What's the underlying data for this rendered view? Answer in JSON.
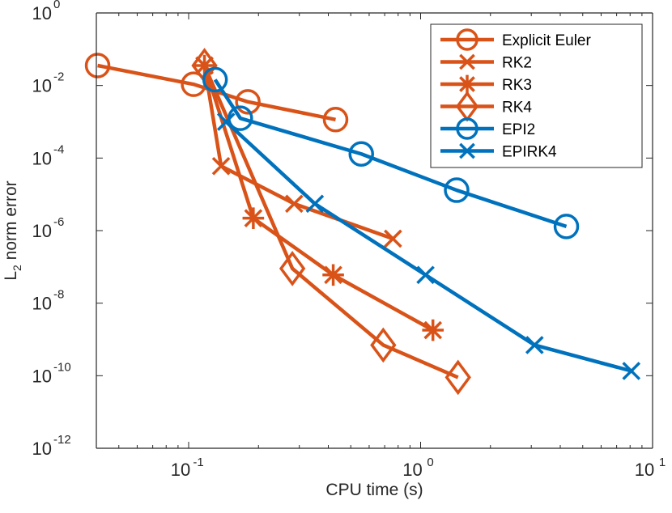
{
  "chart_data": {
    "type": "line",
    "xscale": "log",
    "yscale": "log",
    "xlim": [
      0.04,
      10
    ],
    "ylim": [
      1e-12,
      1
    ],
    "xlabel": "CPU time (s)",
    "ylabel": {
      "base": "L",
      "subscript": "2",
      "rest": " norm error"
    },
    "xticks": [
      {
        "value": 0.1,
        "base": "10",
        "exp": "-1"
      },
      {
        "value": 1,
        "base": "10",
        "exp": "0"
      },
      {
        "value": 10,
        "base": "10",
        "exp": "1"
      }
    ],
    "yticks": [
      {
        "value": 1e-12,
        "base": "10",
        "exp": "-12"
      },
      {
        "value": 1e-10,
        "base": "10",
        "exp": "-10"
      },
      {
        "value": 1e-08,
        "base": "10",
        "exp": "-8"
      },
      {
        "value": 1e-06,
        "base": "10",
        "exp": "-6"
      },
      {
        "value": 0.0001,
        "base": "10",
        "exp": "-4"
      },
      {
        "value": 0.01,
        "base": "10",
        "exp": "-2"
      },
      {
        "value": 1,
        "base": "10",
        "exp": "0"
      }
    ],
    "legend_position": "top-right",
    "series": [
      {
        "name": "Explicit Euler",
        "color": "#D95319",
        "marker": "circle",
        "x": [
          0.0405,
          0.105,
          0.18,
          0.43
        ],
        "y": [
          0.0355,
          0.0108,
          0.00355,
          0.00115
        ]
      },
      {
        "name": "RK2",
        "color": "#D95319",
        "marker": "x",
        "x": [
          0.117,
          0.138,
          0.285,
          0.76
        ],
        "y": [
          0.0355,
          6e-05,
          5.5e-06,
          6e-07
        ]
      },
      {
        "name": "RK3",
        "color": "#D95319",
        "marker": "asterisk",
        "x": [
          0.117,
          0.19,
          0.42,
          1.13
        ],
        "y": [
          0.0355,
          2.2e-06,
          6e-08,
          1.8e-09
        ]
      },
      {
        "name": "RK4",
        "color": "#D95319",
        "marker": "diamond",
        "x": [
          0.117,
          0.28,
          0.69,
          1.45
        ],
        "y": [
          0.0355,
          9e-08,
          7e-10,
          9e-11
        ]
      },
      {
        "name": "EPI2",
        "color": "#0072BD",
        "marker": "circle",
        "x": [
          0.13,
          0.167,
          0.555,
          1.43,
          4.25
        ],
        "y": [
          0.0145,
          0.00125,
          0.00013,
          1.3e-05,
          1.3e-06
        ]
      },
      {
        "name": "EPIRK4",
        "color": "#0072BD",
        "marker": "x",
        "x": [
          0.145,
          0.35,
          1.05,
          3.1,
          8.1
        ],
        "y": [
          0.001,
          5.5e-06,
          6e-08,
          7e-10,
          1.35e-10
        ]
      }
    ]
  }
}
